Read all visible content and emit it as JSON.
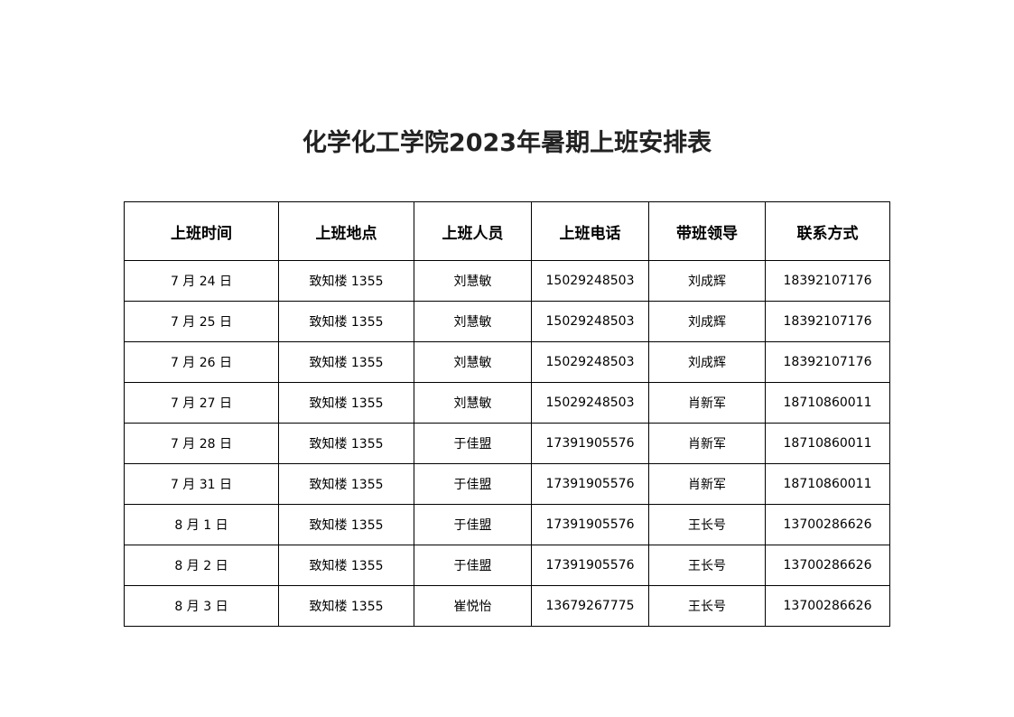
{
  "title": "化学化工学院2023年暑期上班安排表",
  "table": {
    "headers": [
      "上班时间",
      "上班地点",
      "上班人员",
      "上班电话",
      "带班领导",
      "联系方式"
    ],
    "rows": [
      [
        "7 月 24 日",
        "致知楼 1355",
        "刘慧敏",
        "15029248503",
        "刘成辉",
        "18392107176"
      ],
      [
        "7 月 25 日",
        "致知楼 1355",
        "刘慧敏",
        "15029248503",
        "刘成辉",
        "18392107176"
      ],
      [
        "7 月 26 日",
        "致知楼 1355",
        "刘慧敏",
        "15029248503",
        "刘成辉",
        "18392107176"
      ],
      [
        "7 月 27 日",
        "致知楼 1355",
        "刘慧敏",
        "15029248503",
        "肖新军",
        "18710860011"
      ],
      [
        "7 月 28 日",
        "致知楼 1355",
        "于佳盟",
        "17391905576",
        "肖新军",
        "18710860011"
      ],
      [
        "7 月 31 日",
        "致知楼 1355",
        "于佳盟",
        "17391905576",
        "肖新军",
        "18710860011"
      ],
      [
        "8 月 1 日",
        "致知楼 1355",
        "于佳盟",
        "17391905576",
        "王长号",
        "13700286626"
      ],
      [
        "8 月 2 日",
        "致知楼 1355",
        "于佳盟",
        "17391905576",
        "王长号",
        "13700286626"
      ],
      [
        "8 月 3 日",
        "致知楼 1355",
        "崔悦怡",
        "13679267775",
        "王长号",
        "13700286626"
      ]
    ]
  }
}
